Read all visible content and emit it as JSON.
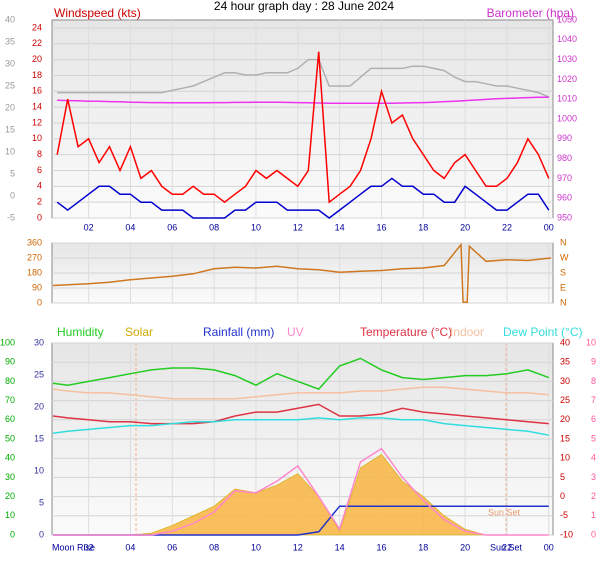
{
  "chart_data": [
    {
      "type": "line",
      "title": "24 hour graph day : 28 June 2024",
      "y_label": "Windspeed (kts)",
      "y2_label": "Barometer (hpa)",
      "x": [
        0.5,
        1,
        1.5,
        2,
        2.5,
        3,
        3.5,
        4,
        4.5,
        5,
        5.5,
        6,
        6.5,
        7,
        7.5,
        8,
        8.5,
        9,
        9.5,
        10,
        10.5,
        11,
        11.5,
        12,
        12.5,
        13,
        13.5,
        14,
        14.5,
        15,
        15.5,
        16,
        16.5,
        17,
        17.5,
        18,
        18.5,
        19,
        19.5,
        20,
        20.5,
        21,
        21.5,
        22,
        22.5,
        23,
        23.5,
        24
      ],
      "xlim": [
        0.25,
        24.2
      ],
      "xticks": [
        {
          "value": 2,
          "label": "02"
        },
        {
          "value": 4,
          "label": "04"
        },
        {
          "value": 6,
          "label": "06"
        },
        {
          "value": 8,
          "label": "08"
        },
        10,
        12,
        14,
        16,
        18,
        20,
        22,
        {
          "value": 24,
          "label": "00"
        }
      ],
      "xtick_color": "#000099",
      "ylim": [
        0,
        25
      ],
      "yticks": [
        0,
        2,
        4,
        6,
        8,
        10,
        12,
        14,
        16,
        18,
        20,
        22,
        24
      ],
      "ycolor": "#cc0000",
      "y3lim": [
        -5,
        40
      ],
      "y3ticks": [
        -5,
        0,
        5,
        10,
        15,
        20,
        25,
        30,
        35,
        40
      ],
      "y3color": "#999999",
      "y2lim": [
        950,
        1050
      ],
      "y2ticks": [
        950,
        960,
        970,
        980,
        990,
        1000,
        1010,
        1020,
        1030,
        1040,
        1050
      ],
      "y2color": "#cc33cc",
      "series": [
        {
          "color": "#b0b0b0",
          "axis": "y3",
          "values": [
            23.5,
            23.5,
            23.5,
            23.5,
            23.5,
            23.5,
            23.5,
            23.5,
            23.5,
            23.5,
            23.5,
            24,
            24.5,
            25,
            26,
            27,
            28,
            28,
            27.5,
            27.5,
            28,
            28,
            28,
            29,
            31,
            31,
            25,
            25,
            25,
            27,
            29,
            29,
            29,
            29,
            29.5,
            29.5,
            29,
            28.5,
            27,
            26,
            26,
            25.5,
            25,
            25,
            24.5,
            24,
            23.5,
            22.5
          ]
        },
        {
          "color": "#ee33ee",
          "axis": "y2",
          "values": [
            1009.5,
            1009.3,
            1009.2,
            1009,
            1009,
            1008.8,
            1008.7,
            1008.5,
            1008.4,
            1008.3,
            1008.3,
            1008.2,
            1008.2,
            1008.2,
            1008.2,
            1008.3,
            1008.3,
            1008.4,
            1008.4,
            1008.5,
            1008.5,
            1008.5,
            1008.4,
            1008.3,
            1008.2,
            1008.1,
            1008,
            1008,
            1008,
            1008,
            1008,
            1008,
            1008,
            1008.1,
            1008.2,
            1008.3,
            1008.5,
            1008.8,
            1009,
            1009.3,
            1009.6,
            1009.9,
            1010.2,
            1010.4,
            1010.6,
            1010.8,
            1011,
            1011
          ]
        },
        {
          "color": "#ff0000",
          "axis": "y",
          "values": [
            8,
            15,
            9,
            10,
            7,
            9,
            6,
            9,
            5,
            6,
            4,
            3,
            3,
            4,
            3,
            3,
            2,
            3,
            4,
            6,
            5,
            6,
            5,
            4,
            6,
            21,
            2,
            3,
            4,
            6,
            10,
            16,
            12,
            13,
            10,
            8,
            6,
            5,
            7,
            8,
            6,
            4,
            4,
            5,
            7,
            10,
            8,
            5
          ]
        },
        {
          "color": "#0000cc",
          "axis": "y",
          "values": [
            2,
            1,
            2,
            3,
            4,
            4,
            3,
            3,
            2,
            2,
            1,
            1,
            1,
            0,
            0,
            0,
            0,
            1,
            1,
            2,
            2,
            2,
            1,
            1,
            1,
            1,
            0,
            1,
            2,
            3,
            4,
            4,
            5,
            4,
            4,
            3,
            3,
            2,
            2,
            4,
            3,
            2,
            1,
            1,
            2,
            3,
            3,
            1
          ]
        }
      ]
    },
    {
      "type": "line",
      "x": [
        0.3,
        1,
        2,
        3,
        4,
        5,
        6,
        7,
        8,
        9,
        10,
        11,
        12,
        13,
        14,
        15,
        16,
        17,
        18,
        19,
        19.8,
        19.9,
        20.1,
        20.2,
        21,
        22,
        23,
        24.1
      ],
      "xlim": [
        0.25,
        24.2
      ],
      "xticks": [
        {
          "value": 2,
          "label": "02"
        },
        {
          "value": 4,
          "label": "04"
        },
        {
          "value": 6,
          "label": "06"
        },
        {
          "value": 8,
          "label": "08"
        },
        10,
        12,
        14,
        16,
        18,
        20,
        22,
        {
          "value": 24,
          "label": "00"
        }
      ],
      "ylim": [
        0,
        360
      ],
      "yticks": [
        0,
        90,
        180,
        270,
        360
      ],
      "ycolor": "#cc6600",
      "y2lim": [
        0,
        360
      ],
      "y2ticks": [
        {
          "value": 0,
          "label": "N"
        },
        {
          "value": 90,
          "label": "E"
        },
        {
          "value": 180,
          "label": "S"
        },
        {
          "value": 270,
          "label": "W"
        },
        {
          "value": 360,
          "label": "N"
        }
      ],
      "y2color": "#cc6600",
      "series": [
        {
          "color": "#d07820",
          "axis": "y",
          "values": [
            105,
            110,
            115,
            125,
            140,
            150,
            160,
            175,
            205,
            215,
            210,
            220,
            205,
            200,
            185,
            190,
            195,
            205,
            210,
            225,
            350,
            5,
            5,
            340,
            250,
            260,
            255,
            270
          ]
        }
      ]
    },
    {
      "type": "line",
      "x": [
        0.3,
        1,
        2,
        3,
        4,
        5,
        6,
        7,
        8,
        9,
        10,
        11,
        12,
        13,
        14,
        15,
        16,
        17,
        18,
        19,
        20,
        21,
        22,
        23,
        24
      ],
      "xlim": [
        0.25,
        24.2
      ],
      "xticks": [
        {
          "value": 2,
          "label": "02"
        },
        {
          "value": 4,
          "label": "04"
        },
        {
          "value": 6,
          "label": "06"
        },
        {
          "value": 8,
          "label": "08"
        },
        10,
        12,
        14,
        16,
        18,
        20,
        22,
        {
          "value": 24,
          "label": "00"
        }
      ],
      "xtick_color": "#000099",
      "ylim": [
        0,
        100
      ],
      "yticks": [
        0,
        10,
        20,
        30,
        40,
        50,
        60,
        70,
        80,
        90,
        100
      ],
      "ycolor": "#00aa00",
      "y3lim": [
        0,
        30
      ],
      "y3ticks": [
        0,
        5,
        10,
        15,
        20,
        25,
        30
      ],
      "y3color": "#333399",
      "y2lim": [
        -10,
        40
      ],
      "y2ticks": [
        -10,
        -5,
        0,
        5,
        10,
        15,
        20,
        25,
        30,
        35,
        40
      ],
      "y2color": "#cc0000",
      "y4lim": [
        0,
        10
      ],
      "y4ticks": [
        0,
        1,
        2,
        3,
        4,
        5,
        6,
        7,
        8,
        9,
        10
      ],
      "y4color": "#ff5599",
      "annotations": [
        "Moon Rise",
        "Sun Set",
        "Sun Set"
      ],
      "series": [
        {
          "name": "Humidity",
          "color": "#22cc22",
          "axis": "y",
          "values": [
            79,
            78,
            80,
            82,
            84,
            86,
            87,
            87,
            86,
            83,
            78,
            84,
            80,
            76,
            88,
            92,
            86,
            82,
            81,
            82,
            83,
            83,
            84,
            86,
            82
          ]
        },
        {
          "name": "Solar",
          "color": "#ccaa00",
          "fill": "#f7b84a",
          "style": "area",
          "axis": "y",
          "values": [
            0,
            0,
            0,
            0,
            0,
            1,
            5,
            10,
            15,
            24,
            22,
            26,
            32,
            20,
            2,
            35,
            42,
            28,
            20,
            10,
            3,
            0,
            0,
            0,
            0
          ]
        },
        {
          "name": "Rainfall (mm)",
          "color": "#2233cc",
          "axis": "y3",
          "values": [
            0,
            0,
            0,
            0,
            0,
            0,
            0,
            0,
            0,
            0,
            0,
            0,
            0,
            0.5,
            4.5,
            4.5,
            4.5,
            4.5,
            4.5,
            4.5,
            4.5,
            4.5,
            4.5,
            4.5,
            4.5
          ]
        },
        {
          "name": "UV",
          "color": "#ff88cc",
          "axis": "y4",
          "values": [
            0,
            0,
            0,
            0,
            0,
            0,
            0.2,
            0.6,
            1.2,
            2.3,
            2.2,
            2.8,
            3.6,
            2,
            0.3,
            3.8,
            4.5,
            3,
            1.8,
            0.8,
            0.2,
            0,
            0,
            0,
            0
          ]
        },
        {
          "name": "Temperature (°C)",
          "color": "#dd3344",
          "axis": "y2",
          "values": [
            21,
            20.5,
            20,
            19.5,
            19.5,
            19,
            19,
            19,
            19.5,
            21,
            22,
            22,
            23,
            24,
            21,
            21,
            21.5,
            23,
            22,
            21.5,
            21,
            20.5,
            20,
            19.5,
            19
          ]
        },
        {
          "name": "Indoor",
          "color": "#f5c0a0",
          "axis": "y2",
          "values": [
            28,
            27.5,
            27,
            27,
            26.5,
            26,
            25.5,
            25.5,
            25.5,
            25.5,
            26,
            26.5,
            27,
            27,
            27,
            27.5,
            27.5,
            28,
            28.5,
            28.5,
            28,
            27.5,
            27,
            27,
            26.5
          ]
        },
        {
          "name": "Dew Point (°C)",
          "color": "#33dddd",
          "axis": "y2",
          "values": [
            16.5,
            17,
            17.5,
            18,
            18.5,
            18.5,
            19,
            19.5,
            19.5,
            20,
            20,
            20,
            20,
            20.5,
            20,
            20.5,
            20.5,
            20,
            20,
            19,
            18.5,
            18,
            17.5,
            17,
            16
          ]
        }
      ]
    }
  ]
}
